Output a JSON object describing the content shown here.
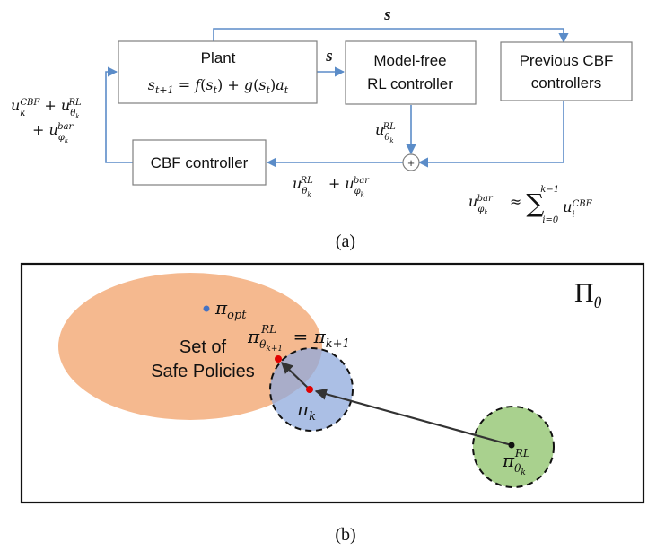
{
  "diagram_a": {
    "caption": "(a)",
    "plant": {
      "title": "Plant",
      "equation": "s_{t+1} = f(s_t) + g(s_t)a_t"
    },
    "rl_controller": {
      "line1": "Model-free",
      "line2": "RL controller"
    },
    "prev_cbf": {
      "line1": "Previous CBF",
      "line2": "controllers"
    },
    "cbf_controller": {
      "label": "CBF controller"
    },
    "sum_symbol": "+",
    "state_label": "s",
    "left_input": {
      "line1": "u_k^CBF + u_θk^RL",
      "line2": "+ u_φk^bar"
    },
    "rl_output": "u_θk^RL",
    "sum_output": "u_θk^RL + u_φk^bar",
    "bar_approx": "u_φk^bar ≈ Σ_{i=0}^{k−1} u_i^CBF"
  },
  "diagram_b": {
    "caption": "(b)",
    "space_label": "Π_θ",
    "safe_set": {
      "line1": "Set of",
      "line2": "Safe Policies"
    },
    "pi_opt": "π_opt",
    "pi_k": "π_k",
    "pi_rl_k": "π_θk^RL",
    "pi_next": "π_θk+1^RL = π_k+1",
    "colors": {
      "safe_set": "#f4b183",
      "pi_k_circle": "#8faadc",
      "rl_circle": "#a9d18e",
      "pi_opt_dot": "#4472c4",
      "red_dot": "#e00000",
      "flow_line": "#5b8cc8"
    }
  }
}
